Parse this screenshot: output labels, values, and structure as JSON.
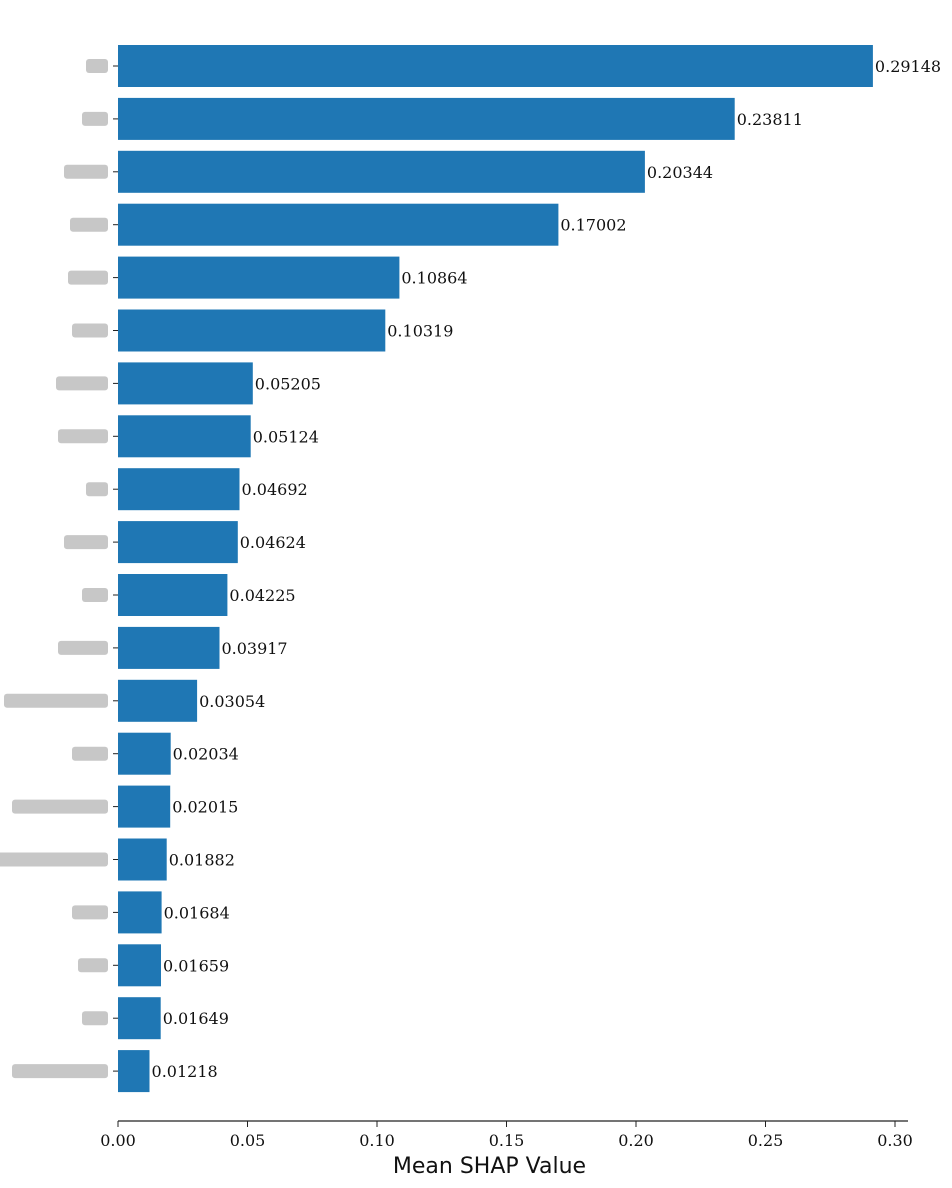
{
  "chart_data": {
    "type": "bar",
    "orientation": "horizontal",
    "title": "",
    "xlabel": "Mean SHAP Value",
    "ylabel": "",
    "xlim": [
      0,
      0.3
    ],
    "xticks": [
      0.0,
      0.05,
      0.1,
      0.15,
      0.2,
      0.25,
      0.3
    ],
    "xtick_labels": [
      "0.00",
      "0.05",
      "0.10",
      "0.15",
      "0.20",
      "0.25",
      "0.30"
    ],
    "categories": [
      "",
      "",
      "",
      "",
      "",
      "",
      "",
      "",
      "",
      "",
      "",
      "",
      "",
      "",
      "",
      "",
      "",
      "",
      "",
      ""
    ],
    "values": [
      0.29148,
      0.23811,
      0.20344,
      0.17002,
      0.10864,
      0.10319,
      0.05205,
      0.05124,
      0.04692,
      0.04624,
      0.04225,
      0.03917,
      0.03054,
      0.02034,
      0.02015,
      0.01882,
      0.01684,
      0.01659,
      0.01649,
      0.01218
    ],
    "value_labels": [
      "0.29148",
      "0.23811",
      "0.20344",
      "0.17002",
      "0.10864",
      "0.10319",
      "0.05205",
      "0.05124",
      "0.04692",
      "0.04624",
      "0.04225",
      "0.03917",
      "0.03054",
      "0.02034",
      "0.02015",
      "0.01882",
      "0.01684",
      "0.01659",
      "0.01649",
      "0.01218"
    ],
    "bar_color": "#1f77b4",
    "grid": false,
    "legend": "none"
  }
}
